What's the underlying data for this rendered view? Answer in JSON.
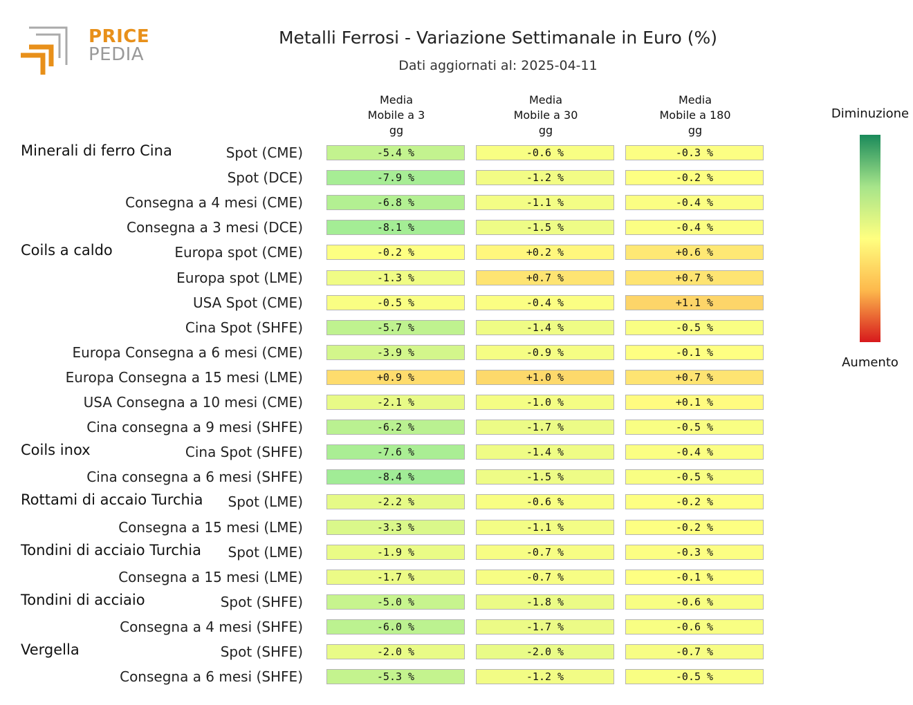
{
  "logo": {
    "line1": "PRICE",
    "line2": "PEDIA"
  },
  "chart_data": {
    "type": "table",
    "title": "Metalli Ferrosi - Variazione Settimanale in Euro (%)",
    "subtitle": "Dati aggiornati al: 2025-04-11",
    "columns": [
      {
        "line1": "Media",
        "line2": "Mobile a 3",
        "line3": "gg"
      },
      {
        "line1": "Media",
        "line2": "Mobile a 30",
        "line3": "gg"
      },
      {
        "line1": "Media",
        "line2": "Mobile a 180",
        "line3": "gg"
      }
    ],
    "legend": {
      "top": "Diminuzione",
      "bottom": "Aumento",
      "top_color": "#1a8a5a",
      "mid_color": "#ffff80",
      "bottom_color": "#d7191c"
    },
    "rows": [
      {
        "group": "Minerali di ferro Cina",
        "label": "Spot (CME)",
        "values": [
          -5.4,
          -0.6,
          -0.3
        ],
        "text": [
          "-5.4 %",
          "-0.6 %",
          "-0.3 %"
        ]
      },
      {
        "group": "",
        "label": "Spot (DCE)",
        "values": [
          -7.9,
          -1.2,
          -0.2
        ],
        "text": [
          "-7.9 %",
          "-1.2 %",
          "-0.2 %"
        ]
      },
      {
        "group": "",
        "label": "Consegna a 4 mesi (CME)",
        "values": [
          -6.8,
          -1.1,
          -0.4
        ],
        "text": [
          "-6.8 %",
          "-1.1 %",
          "-0.4 %"
        ]
      },
      {
        "group": "",
        "label": "Consegna a 3 mesi (DCE)",
        "values": [
          -8.1,
          -1.5,
          -0.4
        ],
        "text": [
          "-8.1 %",
          "-1.5 %",
          "-0.4 %"
        ]
      },
      {
        "group": "Coils a caldo",
        "label": "Europa spot (CME)",
        "values": [
          -0.2,
          0.2,
          0.6
        ],
        "text": [
          "-0.2 %",
          "+0.2 %",
          "+0.6 %"
        ]
      },
      {
        "group": "",
        "label": "Europa spot (LME)",
        "values": [
          -1.3,
          0.7,
          0.7
        ],
        "text": [
          "-1.3 %",
          "+0.7 %",
          "+0.7 %"
        ]
      },
      {
        "group": "",
        "label": "USA Spot (CME)",
        "values": [
          -0.5,
          -0.4,
          1.1
        ],
        "text": [
          "-0.5 %",
          "-0.4 %",
          "+1.1 %"
        ]
      },
      {
        "group": "",
        "label": "Cina Spot (SHFE)",
        "values": [
          -5.7,
          -1.4,
          -0.5
        ],
        "text": [
          "-5.7 %",
          "-1.4 %",
          "-0.5 %"
        ]
      },
      {
        "group": "",
        "label": "Europa Consegna a 6 mesi (CME)",
        "values": [
          -3.9,
          -0.9,
          -0.1
        ],
        "text": [
          "-3.9 %",
          "-0.9 %",
          "-0.1 %"
        ]
      },
      {
        "group": "",
        "label": "Europa Consegna a 15 mesi (LME)",
        "values": [
          0.9,
          1.0,
          0.7
        ],
        "text": [
          "+0.9 %",
          "+1.0 %",
          "+0.7 %"
        ]
      },
      {
        "group": "",
        "label": "USA Consegna a 10 mesi (CME)",
        "values": [
          -2.1,
          -1.0,
          0.1
        ],
        "text": [
          "-2.1 %",
          "-1.0 %",
          "+0.1 %"
        ]
      },
      {
        "group": "",
        "label": "Cina consegna a 9 mesi (SHFE)",
        "values": [
          -6.2,
          -1.7,
          -0.5
        ],
        "text": [
          "-6.2 %",
          "-1.7 %",
          "-0.5 %"
        ]
      },
      {
        "group": "Coils inox",
        "label": "Cina Spot (SHFE)",
        "values": [
          -7.6,
          -1.4,
          -0.4
        ],
        "text": [
          "-7.6 %",
          "-1.4 %",
          "-0.4 %"
        ]
      },
      {
        "group": "",
        "label": "Cina consegna a 6 mesi (SHFE)",
        "values": [
          -8.4,
          -1.5,
          -0.5
        ],
        "text": [
          "-8.4 %",
          "-1.5 %",
          "-0.5 %"
        ]
      },
      {
        "group": "Rottami di accaio Turchia",
        "label": "Spot (LME)",
        "values": [
          -2.2,
          -0.6,
          -0.2
        ],
        "text": [
          "-2.2 %",
          "-0.6 %",
          "-0.2 %"
        ]
      },
      {
        "group": "",
        "label": "Consegna a 15 mesi (LME)",
        "values": [
          -3.3,
          -1.1,
          -0.2
        ],
        "text": [
          "-3.3 %",
          "-1.1 %",
          "-0.2 %"
        ]
      },
      {
        "group": "Tondini di acciaio Turchia",
        "label": "Spot (LME)",
        "values": [
          -1.9,
          -0.7,
          -0.3
        ],
        "text": [
          "-1.9 %",
          "-0.7 %",
          "-0.3 %"
        ]
      },
      {
        "group": "",
        "label": "Consegna a 15 mesi (LME)",
        "values": [
          -1.7,
          -0.7,
          -0.1
        ],
        "text": [
          "-1.7 %",
          "-0.7 %",
          "-0.1 %"
        ]
      },
      {
        "group": "Tondini di acciaio",
        "label": "Spot (SHFE)",
        "values": [
          -5.0,
          -1.8,
          -0.6
        ],
        "text": [
          "-5.0 %",
          "-1.8 %",
          "-0.6 %"
        ]
      },
      {
        "group": "",
        "label": "Consegna a 4 mesi (SHFE)",
        "values": [
          -6.0,
          -1.7,
          -0.6
        ],
        "text": [
          "-6.0 %",
          "-1.7 %",
          "-0.6 %"
        ]
      },
      {
        "group": "Vergella",
        "label": "Spot (SHFE)",
        "values": [
          -2.0,
          -2.0,
          -0.7
        ],
        "text": [
          "-2.0 %",
          "-2.0 %",
          "-0.7 %"
        ]
      },
      {
        "group": "",
        "label": "Consegna a 6 mesi (SHFE)",
        "values": [
          -5.3,
          -1.2,
          -0.5
        ],
        "text": [
          "-5.3 %",
          "-1.2 %",
          "-0.5 %"
        ]
      }
    ]
  }
}
